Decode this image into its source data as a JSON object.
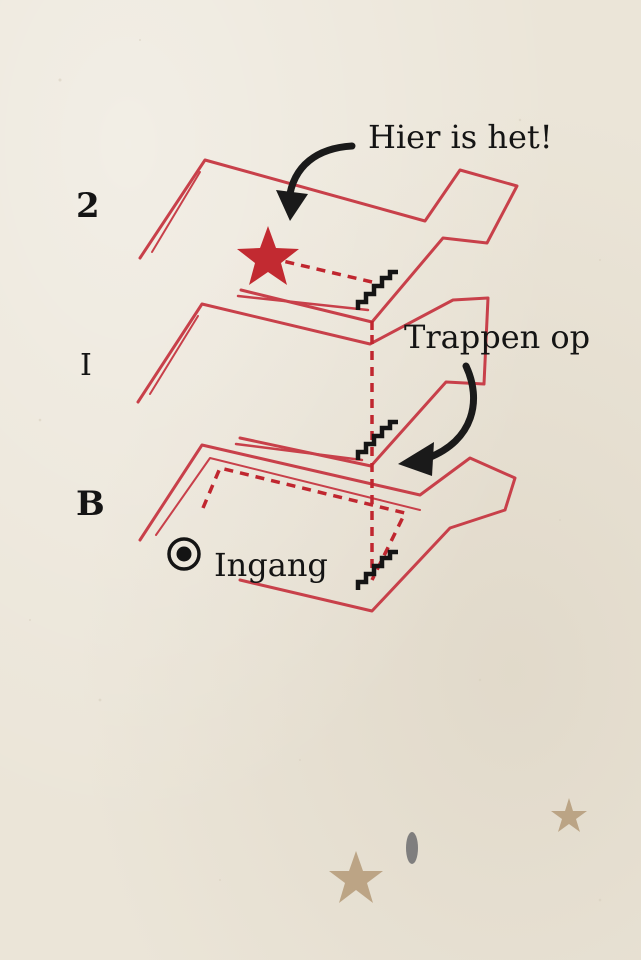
{
  "floors": {
    "second": "2",
    "first": "I",
    "basement": "B"
  },
  "callouts": {
    "destination": "Hier is het!",
    "stairs_up": "Trappen op",
    "entrance": "Ingang"
  },
  "icons": {
    "destination": "star-icon",
    "entrance": "target-icon",
    "stairs": "stairs-icon",
    "arrow": "curved-arrow-icon"
  },
  "colors": {
    "floor_outline": "#c8404a",
    "route": "#c0262f",
    "star": "#c22a31",
    "ink": "#141414",
    "paper": "#ebe5d8",
    "decor_star": "#b49a78"
  }
}
